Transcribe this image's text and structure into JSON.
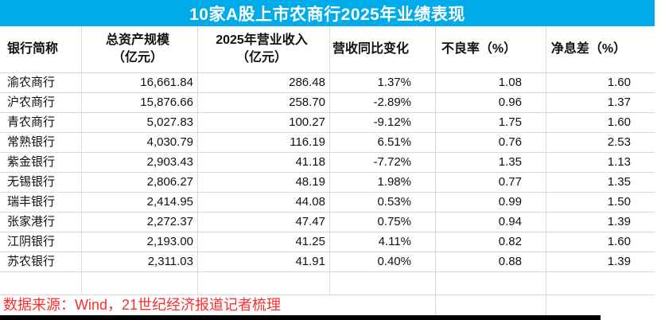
{
  "title": "10家A股上市农商行2025年业绩表现",
  "chart_data": {
    "type": "table",
    "title": "10家A股上市农商行2025年业绩表现",
    "columns": [
      "银行简称",
      "总资产规模（亿元）",
      "2025年营业收入（亿元）",
      "营收同比变化",
      "不良率（%）",
      "净息差（%）"
    ],
    "rows": [
      [
        "渝农商行",
        "16,661.84",
        "286.48",
        "1.37%",
        "1.08",
        "1.60"
      ],
      [
        "沪农商行",
        "15,876.66",
        "258.70",
        "-2.89%",
        "0.96",
        "1.37"
      ],
      [
        "青农商行",
        "5,027.83",
        "100.27",
        "-9.12%",
        "1.75",
        "1.60"
      ],
      [
        "常熟银行",
        "4,030.79",
        "116.19",
        "6.51%",
        "0.76",
        "2.53"
      ],
      [
        "紫金银行",
        "2,903.43",
        "41.18",
        "-7.72%",
        "1.35",
        "1.13"
      ],
      [
        "无锡银行",
        "2,806.27",
        "48.19",
        "1.98%",
        "0.77",
        "1.35"
      ],
      [
        "瑞丰银行",
        "2,414.95",
        "44.08",
        "0.53%",
        "0.99",
        "1.50"
      ],
      [
        "张家港行",
        "2,272.37",
        "47.47",
        "0.75%",
        "0.94",
        "1.39"
      ],
      [
        "江阴银行",
        "2,193.00",
        "41.25",
        "4.11%",
        "0.82",
        "1.60"
      ],
      [
        "苏农银行",
        "2,311.03",
        "41.91",
        "0.40%",
        "0.88",
        "1.39"
      ]
    ]
  },
  "table": {
    "headers": {
      "bank": "银行简称",
      "assets": "总资产规模\n（亿元）",
      "revenue": "2025年营业收入\n（亿元）",
      "yoy": "营收同比变化",
      "npl": "不良率（%）",
      "nim": "净息差（%）"
    }
  },
  "footer": {
    "source": "数据来源：Wind，21世纪经济报道记者梳理"
  },
  "colors": {
    "title_bg": "#00abe9",
    "title_text": "#ffffff",
    "source_text": "#fb2e2e",
    "grid": "#d9d9d9",
    "bottom_bar": "#000000"
  }
}
